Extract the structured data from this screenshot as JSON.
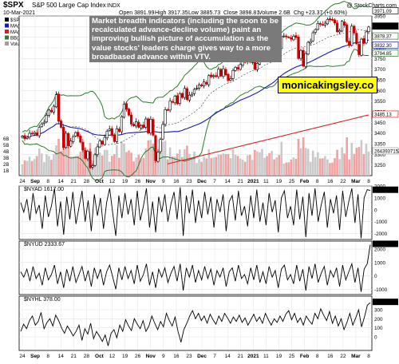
{
  "header": {
    "symbol": "$SPX",
    "name": "S&P 500 Large Cap Index",
    "exchange": "INDX",
    "date": "10-Mar-2021",
    "open": "Open 3891.99",
    "high": "High 3917.35",
    "low": "Low 3885.73",
    "close": "Close 3898.81",
    "volume": "Volume 2.6B",
    "change": "Chg +23.37 (+0.60%)",
    "credit": "@ StockCharts.com"
  },
  "legend": [
    {
      "label": "$SPX (Daily) 3898.81",
      "color": "#000000"
    },
    {
      "label": "MA(50) 3832.30",
      "color": "#1a1aa8"
    },
    {
      "label": "MA(200) 3485.13",
      "color": "#d62020"
    },
    {
      "label": "BB(20,2.0) 3794.85 - 3878.37",
      "color": "#2f7a2f"
    },
    {
      "label": "Volume 2,643,937,152",
      "color": "#a0a0a0"
    }
  ],
  "annotation": "Market breadth indicators (including the soon to be recalculated advance-decline volume) paint an improving bullish picture of accumulation as the value stocks' leaders charge gives way to a more broadbased advance within VTV.",
  "watermark": "monicakingsley.co",
  "x_axis": {
    "labels": [
      "24",
      "Sep",
      "8",
      "14",
      "21",
      "28",
      "Oct",
      "12",
      "19",
      "26",
      "Nov",
      "9",
      "16",
      "23",
      "Dec",
      "7",
      "14",
      "21",
      "2021",
      "11",
      "19",
      "25",
      "Feb",
      "8",
      "16",
      "22",
      "Mar",
      "8"
    ]
  },
  "chart_data": [
    {
      "type": "candlestick",
      "title": "$SPX S&P 500 Large Cap Index INDX",
      "ylim": [
        3200,
        3950
      ],
      "yticks": [
        3250,
        3300,
        3350,
        3400,
        3450,
        3500,
        3550,
        3600,
        3650,
        3700,
        3750,
        3800,
        3850,
        3900,
        3950
      ],
      "ytick_labels": [
        "3250",
        "3300",
        "3350",
        "3400",
        "3450",
        "3500",
        "3550",
        "3600",
        "3650",
        "3700",
        "3750",
        "3800",
        "3850",
        "3900",
        "3950"
      ],
      "volume_ticks": [
        "1B",
        "2B",
        "3B",
        "4B",
        "5B",
        "6B"
      ],
      "last_labels": [
        "3971.09",
        "3898.81",
        "3878.37",
        "3832.30",
        "3794.85",
        "3485.13",
        "2643937152"
      ],
      "series": [
        {
          "name": "$SPX (Daily)",
          "close": [
            3385,
            3373,
            3380,
            3399,
            3398,
            3403,
            3390,
            3427,
            3443,
            3451,
            3484,
            3508,
            3500,
            3526,
            3580,
            3455,
            3427,
            3332,
            3399,
            3340,
            3363,
            3383,
            3402,
            3385,
            3357,
            3320,
            3281,
            3315,
            3237,
            3246,
            3298,
            3335,
            3363,
            3348,
            3380,
            3409,
            3419,
            3391,
            3360,
            3420,
            3408,
            3477,
            3535,
            3511,
            3484,
            3442,
            3434,
            3453,
            3427,
            3435,
            3426,
            3466,
            3400,
            3465,
            3390,
            3270,
            3310,
            3370,
            3440,
            3510,
            3509,
            3550,
            3545,
            3573,
            3537,
            3585,
            3567,
            3610,
            3557,
            3578,
            3582,
            3605,
            3610,
            3626,
            3622,
            3640,
            3630,
            3670,
            3664,
            3669,
            3665,
            3700,
            3668,
            3702,
            3673,
            3647,
            3655,
            3694,
            3709,
            3701,
            3722,
            3736,
            3732,
            3756,
            3733,
            3735,
            3700,
            3727,
            3748,
            3803,
            3824,
            3800,
            3768,
            3805,
            3801,
            3809,
            3795,
            3853,
            3856,
            3852,
            3850,
            3841,
            3855,
            3849,
            3750,
            3788,
            3714,
            3773,
            3826,
            3830,
            3871,
            3886,
            3915,
            3911,
            3909,
            3916,
            3934,
            3932,
            3931,
            3917,
            3876,
            3881,
            3925,
            3906,
            3829,
            3811,
            3902,
            3870,
            3819,
            3768,
            3841,
            3821,
            3875,
            3898
          ]
        },
        {
          "name": "MA(50)",
          "last": 3832.3
        },
        {
          "name": "MA(200)",
          "last": 3485.13
        },
        {
          "name": "BB(20,2.0)",
          "lower": 3794.85,
          "upper": 3878.37
        },
        {
          "name": "Volume",
          "last": 2643937152
        }
      ]
    },
    {
      "type": "line",
      "title": "$NYAD 1617.00",
      "last_label": "1617.00",
      "ylim": [
        -2500,
        2000
      ],
      "yticks": [
        -2000,
        -1000,
        0,
        1000,
        2000
      ],
      "ytick_labels": [
        "-2000",
        "-1000",
        "0",
        "1000",
        "2000"
      ],
      "series": [
        {
          "name": "$NYAD",
          "values": [
            600,
            -200,
            900,
            -900,
            1400,
            -300,
            400,
            -1600,
            1200,
            -600,
            300,
            1800,
            -1400,
            700,
            -2100,
            1100,
            -800,
            1500,
            -1200,
            200,
            1600,
            -1000,
            800,
            -1800,
            1300,
            -500,
            1000,
            -1600,
            600,
            1800,
            -300,
            -2200,
            1200,
            -700,
            1400,
            -400,
            900,
            -1300,
            1600,
            -900,
            300,
            1800,
            -1500,
            700,
            -1900,
            1100,
            -200,
            1300,
            -1000,
            500,
            1500,
            -800,
            1900,
            -2200,
            1200,
            -300,
            1700,
            -1100,
            800,
            -700,
            1500,
            -400,
            1100,
            -1500,
            900,
            -200,
            1300,
            -1800,
            700,
            1200,
            -900,
            1600,
            -500,
            300,
            -1400,
            1200,
            -700,
            1700,
            -1000,
            600,
            -1300,
            1400,
            -200,
            800,
            -1900,
            1000,
            1600,
            -700,
            300,
            -1300,
            1700,
            -800,
            1100,
            -2300,
            1400,
            -500,
            1800,
            -1000,
            400,
            1500,
            -1500,
            900,
            -300,
            1200,
            -1700,
            1600,
            -600,
            700,
            1800,
            -1100,
            1300,
            -2400,
            1000,
            1700,
            1617
          ]
        }
      ]
    },
    {
      "type": "line",
      "title": "$NYUD 2333.67",
      "last_label": "2333.67",
      "ylim": [
        -1400,
        2600
      ],
      "yticks": [
        -1000,
        0,
        1000,
        2000
      ],
      "ytick_labels": [
        "-1000",
        "0",
        "1000",
        "2000"
      ],
      "series": [
        {
          "name": "$NYUD",
          "values": [
            300,
            -100,
            500,
            -400,
            700,
            -200,
            200,
            -700,
            600,
            -300,
            100,
            800,
            -600,
            300,
            -900,
            500,
            -400,
            700,
            -500,
            100,
            700,
            -400,
            400,
            -800,
            600,
            -200,
            500,
            -700,
            300,
            800,
            -100,
            -1000,
            600,
            -300,
            700,
            -200,
            400,
            -600,
            800,
            -400,
            100,
            900,
            -700,
            300,
            -900,
            500,
            -100,
            600,
            -500,
            200,
            700,
            -400,
            900,
            -1100,
            600,
            -100,
            800,
            -500,
            400,
            -300,
            700,
            -200,
            500,
            -700,
            400,
            -100,
            600,
            -800,
            300,
            600,
            -400,
            800,
            -200,
            100,
            -600,
            600,
            -300,
            800,
            -500,
            300,
            -600,
            700,
            -100,
            400,
            -900,
            500,
            800,
            -300,
            100,
            -600,
            800,
            -400,
            500,
            -1100,
            700,
            -200,
            900,
            -500,
            200,
            700,
            -700,
            400,
            -100,
            600,
            -800,
            800,
            -300,
            300,
            900,
            -500,
            600,
            -1200,
            500,
            900,
            2333.67
          ]
        }
      ]
    },
    {
      "type": "line",
      "title": "$NYHL 378.00",
      "last_label": "378.00",
      "ylim": [
        -150,
        450
      ],
      "yticks": [
        0,
        100,
        200,
        300
      ],
      "ytick_labels": [
        "0",
        "100",
        "200",
        "300"
      ],
      "series": [
        {
          "name": "$NYHL",
          "values": [
            60,
            140,
            90,
            180,
            230,
            130,
            170,
            270,
            90,
            160,
            200,
            120,
            240,
            180,
            100,
            40,
            120,
            70,
            10,
            60,
            130,
            -40,
            90,
            30,
            150,
            -20,
            60,
            10,
            -50,
            20,
            -100,
            40,
            80,
            -10,
            130,
            60,
            190,
            120,
            70,
            200,
            140,
            90,
            180,
            60,
            120,
            230,
            150,
            80,
            170,
            110,
            260,
            180,
            120,
            220,
            60,
            -60,
            80,
            150,
            230,
            290,
            200,
            260,
            180,
            230,
            150,
            250,
            190,
            140,
            230,
            170,
            260,
            210,
            150,
            220,
            170,
            240,
            160,
            210,
            130,
            190,
            250,
            170,
            220,
            150,
            260,
            190,
            130,
            200,
            160,
            230,
            170,
            250,
            290,
            190,
            260,
            160,
            210,
            130,
            230,
            180,
            140,
            260,
            200,
            310,
            240,
            180,
            280,
            150,
            230,
            120,
            200,
            80,
            160,
            260,
            130,
            210,
            300,
            110,
            220,
            350,
            378
          ]
        }
      ]
    }
  ]
}
